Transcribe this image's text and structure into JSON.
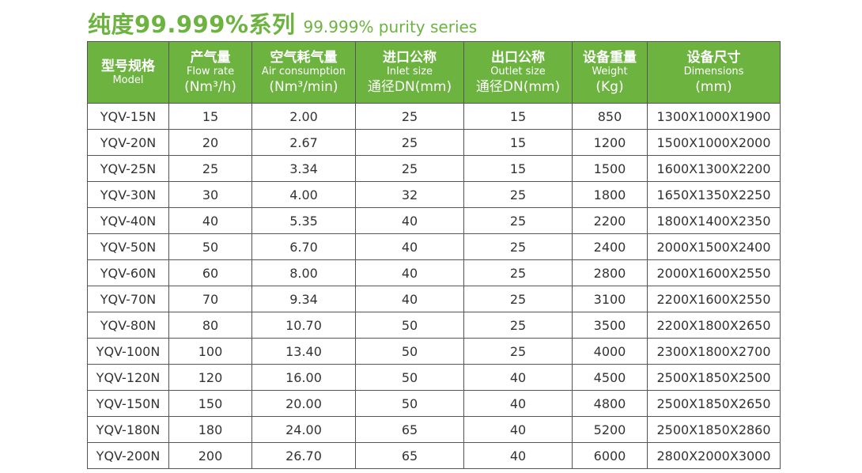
{
  "title": {
    "cn": "纯度99.999%系列",
    "en": "99.999% purity series"
  },
  "colors": {
    "accent": "#6cb33f",
    "header_text": "#ffffff",
    "cell_text": "#333333",
    "border": "#555555"
  },
  "table": {
    "headers": [
      {
        "cn": "型号规格",
        "en": "Model",
        "unit": ""
      },
      {
        "cn": "产气量",
        "en": "Flow rate",
        "unit": "(Nm³/h)"
      },
      {
        "cn": "空气耗气量",
        "en": "Air consumption",
        "unit": "(Nm³/min)"
      },
      {
        "cn": "进口公称",
        "en": "Inlet size",
        "unit": "通径DN(mm)"
      },
      {
        "cn": "出口公称",
        "en": "Outlet size",
        "unit": "通径DN(mm)"
      },
      {
        "cn": "设备重量",
        "en": "Weight",
        "unit": "(Kg)"
      },
      {
        "cn": "设备尺寸",
        "en": "Dimensions",
        "unit": "(mm)"
      }
    ],
    "rows": [
      [
        "YQV-15N",
        "15",
        "2.00",
        "25",
        "15",
        "850",
        "1300X1000X1900"
      ],
      [
        "YQV-20N",
        "20",
        "2.67",
        "25",
        "15",
        "1200",
        "1500X1000X2000"
      ],
      [
        "YQV-25N",
        "25",
        "3.34",
        "25",
        "15",
        "1500",
        "1600X1300X2200"
      ],
      [
        "YQV-30N",
        "30",
        "4.00",
        "32",
        "25",
        "1800",
        "1650X1350X2250"
      ],
      [
        "YQV-40N",
        "40",
        "5.35",
        "40",
        "25",
        "2200",
        "1800X1400X2350"
      ],
      [
        "YQV-50N",
        "50",
        "6.70",
        "40",
        "25",
        "2400",
        "2000X1500X2400"
      ],
      [
        "YQV-60N",
        "60",
        "8.00",
        "40",
        "25",
        "2800",
        "2000X1600X2550"
      ],
      [
        "YQV-70N",
        "70",
        "9.34",
        "40",
        "25",
        "3100",
        "2200X1600X2550"
      ],
      [
        "YQV-80N",
        "80",
        "10.70",
        "50",
        "25",
        "3500",
        "2200X1800X2650"
      ],
      [
        "YQV-100N",
        "100",
        "13.40",
        "50",
        "25",
        "4000",
        "2300X1800X2700"
      ],
      [
        "YQV-120N",
        "120",
        "16.00",
        "50",
        "40",
        "4500",
        "2500X1850X2500"
      ],
      [
        "YQV-150N",
        "150",
        "20.00",
        "50",
        "40",
        "4800",
        "2500X1850X2650"
      ],
      [
        "YQV-180N",
        "180",
        "24.00",
        "65",
        "40",
        "5200",
        "2500X1850X2860"
      ],
      [
        "YQV-200N",
        "200",
        "26.70",
        "65",
        "40",
        "6000",
        "2800X2000X3000"
      ]
    ]
  }
}
